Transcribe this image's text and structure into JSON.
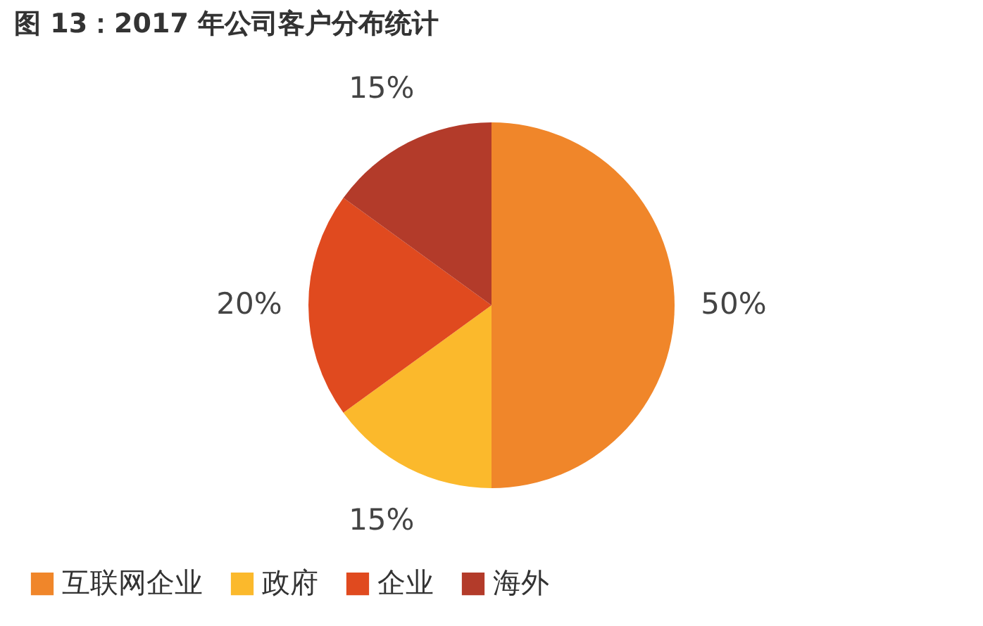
{
  "chart_data": {
    "type": "pie",
    "title": "图 13：2017 年公司客户分布统计",
    "categories": [
      "互联网企业",
      "政府",
      "企业",
      "海外"
    ],
    "values": [
      50,
      15,
      20,
      15
    ],
    "colors": [
      "#f0862a",
      "#fbb92c",
      "#e04a1f",
      "#b33b2a"
    ],
    "value_labels": [
      "50%",
      "15%",
      "20%",
      "15%"
    ],
    "legend": "bottom"
  }
}
